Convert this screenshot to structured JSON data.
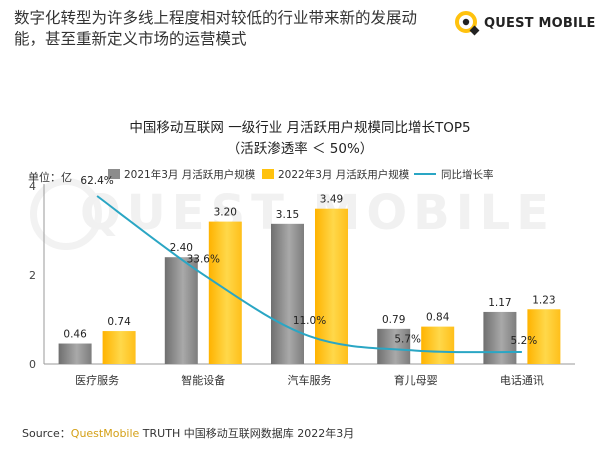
{
  "headline": "数字化转型为许多线上程度相对较低的行业带来新的发展动能，甚至重新定义市场的运营模式",
  "logo": {
    "text": "QUEST MOBILE",
    "icon": "questmobile-logo-icon"
  },
  "watermark": "QUEST MOBILE",
  "source": {
    "prefix": "Source：",
    "brand": "QuestMobile",
    "rest": " TRUTH 中国移动互联网数据库 2022年3月"
  },
  "colors": {
    "bar2021": "#8c8c8c",
    "bar2022": "#ffc20e",
    "growth_line": "#2aa6c4",
    "brand_yellow": "#ffc20e"
  },
  "chart_data": {
    "type": "bar",
    "title": "中国移动互联网 一级行业 月活跃用户规模同比增长TOP5",
    "subtitle": "（活跃渗透率 ＜ 50%）",
    "unit_label": "单位：亿",
    "ylim": [
      0,
      4
    ],
    "yticks": [
      0,
      2,
      4
    ],
    "grid": false,
    "legend_position": "top",
    "categories": [
      "医疗服务",
      "智能设备",
      "汽车服务",
      "育儿母婴",
      "电话通讯"
    ],
    "series": [
      {
        "name": "2021年3月 月活跃用户规模",
        "kind": "bar",
        "values": [
          0.46,
          2.4,
          3.15,
          0.79,
          1.17
        ],
        "labels": [
          "0.46",
          "2.40",
          "3.15",
          "0.79",
          "1.17"
        ]
      },
      {
        "name": "2022年3月 月活跃用户规模",
        "kind": "bar",
        "values": [
          0.74,
          3.2,
          3.49,
          0.84,
          1.23
        ],
        "labels": [
          "0.74",
          "3.20",
          "3.49",
          "0.84",
          "1.23"
        ]
      },
      {
        "name": "同比增长率",
        "kind": "line",
        "values": [
          62.4,
          33.6,
          11.0,
          5.7,
          5.2
        ],
        "labels": [
          "62.4%",
          "33.6%",
          "11.0%",
          "5.7%",
          "5.2%"
        ]
      }
    ]
  }
}
